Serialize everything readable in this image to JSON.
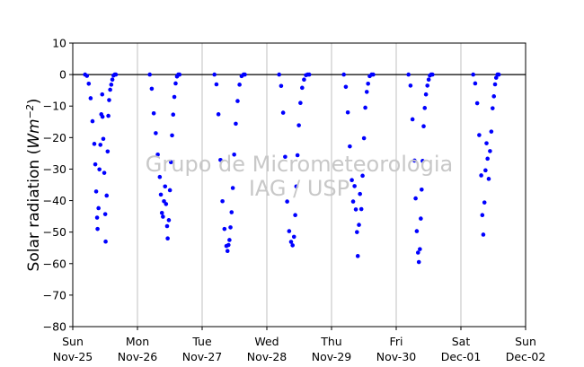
{
  "chart_data": {
    "type": "scatter",
    "title": "",
    "ylabel_prefix": "Solar radiation (",
    "ylabel_unit": "Wm",
    "ylabel_exp": "−2",
    "ylabel_suffix": ")",
    "ylim": [
      -80,
      10
    ],
    "yticks": [
      10,
      0,
      -10,
      -20,
      -30,
      -40,
      -50,
      -60,
      -70,
      -80
    ],
    "xlim": [
      "2014-11-25",
      "2014-12-02"
    ],
    "xticks": [
      {
        "day": "Sun",
        "date": "Nov-25"
      },
      {
        "day": "Mon",
        "date": "Nov-26"
      },
      {
        "day": "Tue",
        "date": "Nov-27"
      },
      {
        "day": "Wed",
        "date": "Nov-28"
      },
      {
        "day": "Thu",
        "date": "Nov-29"
      },
      {
        "day": "Fri",
        "date": "Nov-30"
      },
      {
        "day": "Sat",
        "date": "Dec-01"
      },
      {
        "day": "Sun",
        "date": "Dec-02"
      }
    ],
    "grid": "vertical",
    "reference_line_y": 0,
    "marker_color": "#0000ff",
    "watermark_line1": "Grupo de Micrometeorologia",
    "watermark_line2": "IAG / USP",
    "daily_minimum_approx": [
      {
        "day": "Nov-25",
        "min": -53
      },
      {
        "day": "Nov-26",
        "min": -52
      },
      {
        "day": "Nov-27",
        "min": -56
      },
      {
        "day": "Nov-28",
        "min": -54
      },
      {
        "day": "Nov-29",
        "min": -58
      },
      {
        "day": "Nov-30",
        "min": -60
      },
      {
        "day": "Dec-01",
        "min": -51
      }
    ],
    "series": [
      {
        "points": [
          [
            0.19,
            0.0
          ],
          [
            0.219,
            -0.4
          ],
          [
            0.247,
            -2.9
          ],
          [
            0.276,
            -7.5
          ],
          [
            0.305,
            -14.8
          ],
          [
            0.333,
            -22.0
          ],
          [
            0.348,
            -28.5
          ],
          [
            0.362,
            -37.1
          ],
          [
            0.376,
            -45.4
          ],
          [
            0.383,
            -49.0
          ],
          [
            0.398,
            -42.4
          ],
          [
            0.412,
            -30.1
          ],
          [
            0.427,
            -22.3
          ],
          [
            0.441,
            -12.6
          ],
          [
            0.455,
            -6.3
          ],
          [
            0.46,
            -13.4
          ],
          [
            0.472,
            -20.4
          ],
          [
            0.487,
            -31.2
          ],
          [
            0.502,
            -44.3
          ],
          [
            0.508,
            -53.0
          ],
          [
            0.524,
            -38.4
          ],
          [
            0.539,
            -24.4
          ],
          [
            0.55,
            -13.1
          ],
          [
            0.562,
            -8.1
          ],
          [
            0.578,
            -4.8
          ],
          [
            0.595,
            -3.2
          ],
          [
            0.612,
            -1.6
          ],
          [
            0.63,
            -0.3
          ],
          [
            0.648,
            0.0
          ],
          [
            0.666,
            0.0
          ],
          [
            1.19,
            0.0
          ],
          [
            1.221,
            -4.5
          ],
          [
            1.252,
            -12.3
          ],
          [
            1.283,
            -18.6
          ],
          [
            1.314,
            -25.4
          ],
          [
            1.345,
            -32.5
          ],
          [
            1.362,
            -38.1
          ],
          [
            1.378,
            -43.9
          ],
          [
            1.394,
            -45.1
          ],
          [
            1.41,
            -40.2
          ],
          [
            1.427,
            -35.5
          ],
          [
            1.442,
            -41.1
          ],
          [
            1.458,
            -48.1
          ],
          [
            1.467,
            -52.0
          ],
          [
            1.485,
            -46.2
          ],
          [
            1.502,
            -36.7
          ],
          [
            1.518,
            -27.8
          ],
          [
            1.535,
            -19.3
          ],
          [
            1.552,
            -12.7
          ],
          [
            1.57,
            -7.1
          ],
          [
            1.59,
            -2.8
          ],
          [
            1.611,
            -0.6
          ],
          [
            1.631,
            0.0
          ],
          [
            1.65,
            0.0
          ],
          [
            2.19,
            0.0
          ],
          [
            2.221,
            -3.1
          ],
          [
            2.252,
            -12.6
          ],
          [
            2.283,
            -27.1
          ],
          [
            2.314,
            -40.2
          ],
          [
            2.345,
            -49.0
          ],
          [
            2.375,
            -54.4
          ],
          [
            2.392,
            -56.0
          ],
          [
            2.407,
            -54.1
          ],
          [
            2.422,
            -52.5
          ],
          [
            2.438,
            -48.5
          ],
          [
            2.455,
            -43.7
          ],
          [
            2.474,
            -36.0
          ],
          [
            2.495,
            -25.4
          ],
          [
            2.52,
            -15.6
          ],
          [
            2.548,
            -8.4
          ],
          [
            2.578,
            -3.2
          ],
          [
            2.61,
            -0.5
          ],
          [
            2.64,
            0.0
          ],
          [
            2.66,
            0.0
          ],
          [
            3.19,
            0.0
          ],
          [
            3.221,
            -3.6
          ],
          [
            3.252,
            -12.1
          ],
          [
            3.283,
            -26.1
          ],
          [
            3.314,
            -40.3
          ],
          [
            3.345,
            -49.7
          ],
          [
            3.375,
            -53.1
          ],
          [
            3.398,
            -54.2
          ],
          [
            3.42,
            -51.5
          ],
          [
            3.439,
            -44.6
          ],
          [
            3.456,
            -35.5
          ],
          [
            3.474,
            -25.6
          ],
          [
            3.495,
            -16.1
          ],
          [
            3.519,
            -9.0
          ],
          [
            3.546,
            -4.2
          ],
          [
            3.575,
            -1.6
          ],
          [
            3.605,
            -0.2
          ],
          [
            3.63,
            0.0
          ],
          [
            3.655,
            0.0
          ],
          [
            4.19,
            0.0
          ],
          [
            4.221,
            -3.9
          ],
          [
            4.252,
            -12.0
          ],
          [
            4.283,
            -22.8
          ],
          [
            4.314,
            -33.5
          ],
          [
            4.334,
            -40.3
          ],
          [
            4.356,
            -35.4
          ],
          [
            4.376,
            -42.8
          ],
          [
            4.393,
            -50.0
          ],
          [
            4.406,
            -57.6
          ],
          [
            4.424,
            -47.7
          ],
          [
            4.44,
            -37.9
          ],
          [
            4.461,
            -42.7
          ],
          [
            4.48,
            -32.1
          ],
          [
            4.502,
            -20.2
          ],
          [
            4.522,
            -10.5
          ],
          [
            4.545,
            -5.5
          ],
          [
            4.565,
            -2.9
          ],
          [
            4.59,
            -0.5
          ],
          [
            4.62,
            0.0
          ],
          [
            4.645,
            0.0
          ],
          [
            5.19,
            0.0
          ],
          [
            5.221,
            -3.5
          ],
          [
            5.252,
            -14.2
          ],
          [
            5.283,
            -27.3
          ],
          [
            5.3,
            -39.3
          ],
          [
            5.318,
            -49.7
          ],
          [
            5.337,
            -56.5
          ],
          [
            5.35,
            -59.5
          ],
          [
            5.366,
            -55.4
          ],
          [
            5.38,
            -45.7
          ],
          [
            5.393,
            -36.5
          ],
          [
            5.408,
            -27.4
          ],
          [
            5.424,
            -16.4
          ],
          [
            5.441,
            -10.6
          ],
          [
            5.46,
            -6.3
          ],
          [
            5.482,
            -3.5
          ],
          [
            5.502,
            -1.6
          ],
          [
            5.52,
            -0.3
          ],
          [
            5.54,
            0.0
          ],
          [
            5.56,
            0.0
          ],
          [
            6.19,
            0.0
          ],
          [
            6.221,
            -2.8
          ],
          [
            6.252,
            -9.1
          ],
          [
            6.283,
            -19.2
          ],
          [
            6.314,
            -32.0
          ],
          [
            6.331,
            -44.6
          ],
          [
            6.346,
            -50.8
          ],
          [
            6.364,
            -40.6
          ],
          [
            6.38,
            -30.4
          ],
          [
            6.396,
            -21.8
          ],
          [
            6.412,
            -26.7
          ],
          [
            6.43,
            -33.1
          ],
          [
            6.45,
            -24.3
          ],
          [
            6.47,
            -18.1
          ],
          [
            6.49,
            -10.7
          ],
          [
            6.51,
            -6.9
          ],
          [
            6.528,
            -3.1
          ],
          [
            6.545,
            -1.0
          ],
          [
            6.565,
            0.0
          ],
          [
            6.585,
            0.0
          ]
        ]
      }
    ]
  }
}
